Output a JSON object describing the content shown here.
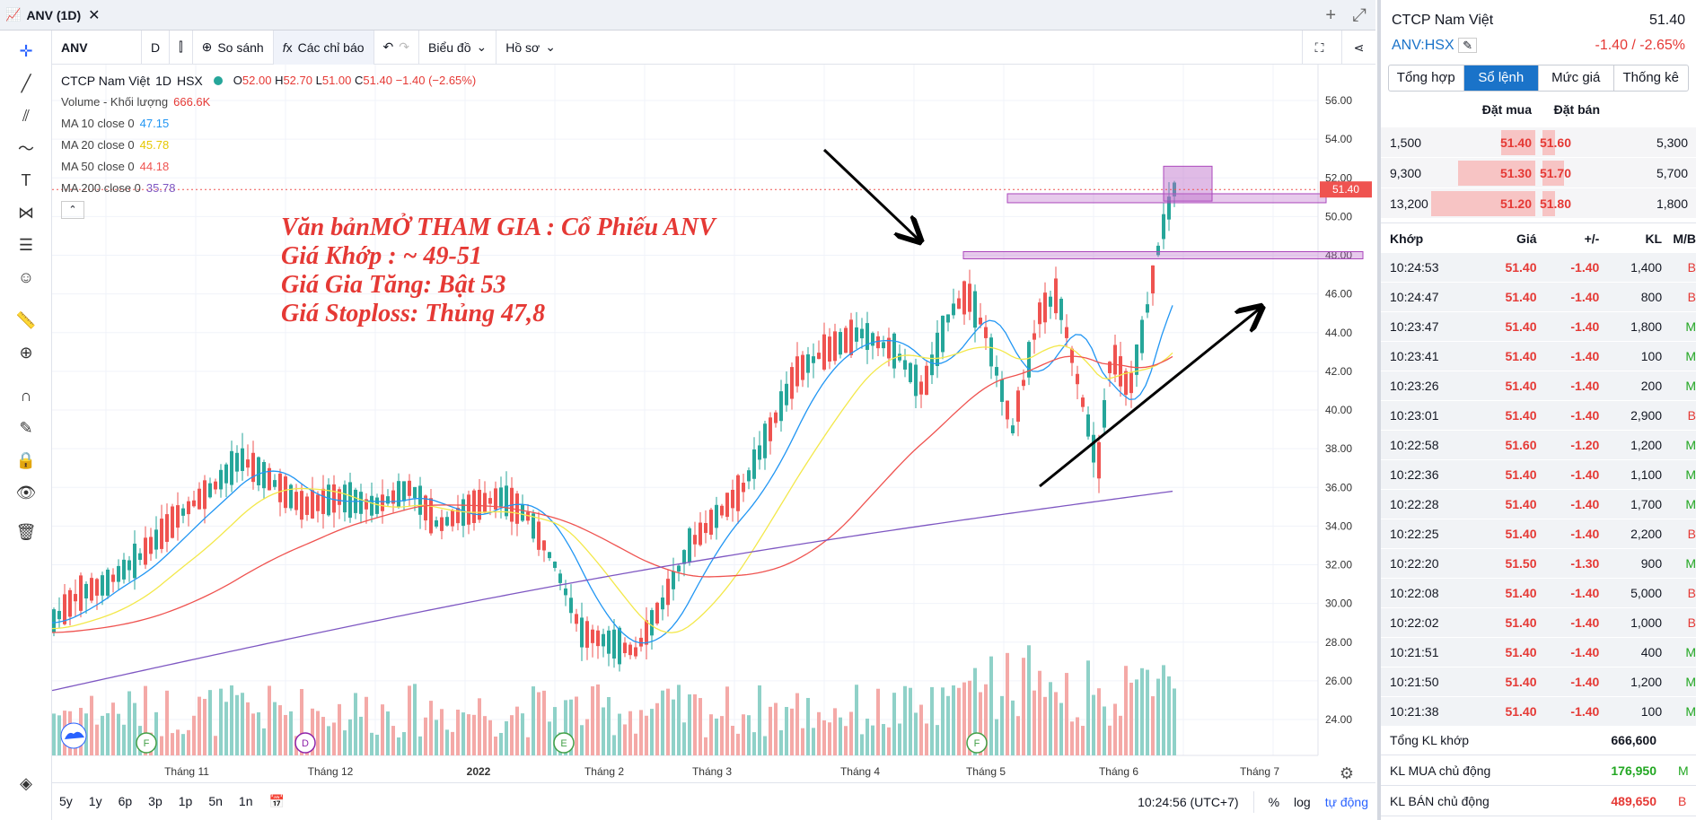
{
  "window": {
    "title": "ANV (1D)",
    "close": "✕",
    "plus": "+",
    "expand": "⤢"
  },
  "toolbar": {
    "symbol": "ANV",
    "interval": "D",
    "compare": "So sánh",
    "indicators": "Các chỉ báo",
    "chart_type": "Biểu đồ",
    "profile": "Hồ sơ"
  },
  "legend": {
    "name": "CTCP Nam Việt",
    "interval": "1D",
    "exchange": "HSX",
    "ohlc": {
      "o": "52.00",
      "h": "52.70",
      "l": "51.00",
      "c": "51.40",
      "chg": "−1.40 (−2.65%)"
    },
    "volume_label": "Volume - Khối lượng",
    "volume_value": "666.6K",
    "ma": [
      {
        "label": "MA 10 close 0",
        "value": "47.15",
        "color": "#2196f3"
      },
      {
        "label": "MA 20 close 0",
        "value": "45.78",
        "color": "#f3e84a"
      },
      {
        "label": "MA 50 close 0",
        "value": "44.18",
        "color": "#ef5350"
      },
      {
        "label": "MA 200 close 0",
        "value": "35.78",
        "color": "#7e57c2"
      }
    ]
  },
  "annotation": [
    "Văn bảnMỞ THAM GIA : Cổ Phiếu ANV",
    "Giá Khớp : ~ 49-51",
    "Giá Gia Tăng: Bật 53",
    "Giá Stoploss: Thủng 47,8"
  ],
  "price_axis": [
    "56.00",
    "54.00",
    "52.00",
    "50.00",
    "48.00",
    "46.00",
    "44.00",
    "42.00",
    "40.00",
    "38.00",
    "36.00",
    "34.00",
    "32.00",
    "30.00",
    "28.00",
    "26.00",
    "24.00"
  ],
  "last_price_label": "51.40",
  "time_axis": [
    "Tháng 11",
    "Tháng 12",
    "2022",
    "Tháng 2",
    "Tháng 3",
    "Tháng 4",
    "Tháng 5",
    "Tháng 6",
    "Tháng 7"
  ],
  "bottom": {
    "ranges": [
      "5y",
      "1y",
      "6p",
      "3p",
      "1p",
      "5n",
      "1n"
    ],
    "time": "10:24:56 (UTC+7)",
    "pct": "%",
    "log": "log",
    "auto": "tự động"
  },
  "chart_data": {
    "type": "candlestick",
    "price_range": [
      23,
      57
    ],
    "last": 51.4,
    "ma": {
      "ma10": 47.15,
      "ma20": 45.78,
      "ma50": 44.18,
      "ma200": 35.78
    },
    "volume_last": "666.6K"
  },
  "panel": {
    "name": "CTCP Nam Việt",
    "price": "51.40",
    "ticker": "ANV:HSX",
    "change": "-1.40 / -2.65%",
    "tabs": [
      "Tổng hợp",
      "Sổ lệnh",
      "Mức giá",
      "Thống kê"
    ],
    "active_tab": 1,
    "book_headers": {
      "buy": "Đặt mua",
      "sell": "Đặt bán"
    },
    "book": [
      {
        "bv": "1,500",
        "bp": "51.40",
        "sp": "51.60",
        "sv": "5,300"
      },
      {
        "bv": "9,300",
        "bp": "51.30",
        "sp": "51.70",
        "sv": "5,700"
      },
      {
        "bv": "13,200",
        "bp": "51.20",
        "sp": "51.80",
        "sv": "1,800"
      }
    ],
    "trade_headers": [
      "Khớp",
      "Giá",
      "+/-",
      "KL",
      "M/B"
    ],
    "trades": [
      [
        "10:24:53",
        "51.40",
        "-1.40",
        "1,400",
        "B"
      ],
      [
        "10:24:47",
        "51.40",
        "-1.40",
        "800",
        "B"
      ],
      [
        "10:23:47",
        "51.40",
        "-1.40",
        "1,800",
        "M"
      ],
      [
        "10:23:41",
        "51.40",
        "-1.40",
        "100",
        "M"
      ],
      [
        "10:23:26",
        "51.40",
        "-1.40",
        "200",
        "M"
      ],
      [
        "10:23:01",
        "51.40",
        "-1.40",
        "2,900",
        "B"
      ],
      [
        "10:22:58",
        "51.60",
        "-1.20",
        "1,200",
        "M"
      ],
      [
        "10:22:36",
        "51.40",
        "-1.40",
        "1,100",
        "M"
      ],
      [
        "10:22:28",
        "51.40",
        "-1.40",
        "1,700",
        "M"
      ],
      [
        "10:22:25",
        "51.40",
        "-1.40",
        "2,200",
        "B"
      ],
      [
        "10:22:20",
        "51.50",
        "-1.30",
        "900",
        "M"
      ],
      [
        "10:22:08",
        "51.40",
        "-1.40",
        "5,000",
        "B"
      ],
      [
        "10:22:02",
        "51.40",
        "-1.40",
        "1,000",
        "B"
      ],
      [
        "10:21:51",
        "51.40",
        "-1.40",
        "400",
        "M"
      ],
      [
        "10:21:50",
        "51.40",
        "-1.40",
        "1,200",
        "M"
      ],
      [
        "10:21:38",
        "51.40",
        "-1.40",
        "100",
        "M"
      ]
    ],
    "summary": [
      {
        "label": "Tổng KL khớp",
        "value": "666,600",
        "color": "#131722",
        "tag": ""
      },
      {
        "label": "KL MUA chủ động",
        "value": "176,950",
        "color": "#22a722",
        "tag": "M"
      },
      {
        "label": "KL BÁN chủ động",
        "value": "489,650",
        "color": "#e53935",
        "tag": "B"
      }
    ]
  }
}
